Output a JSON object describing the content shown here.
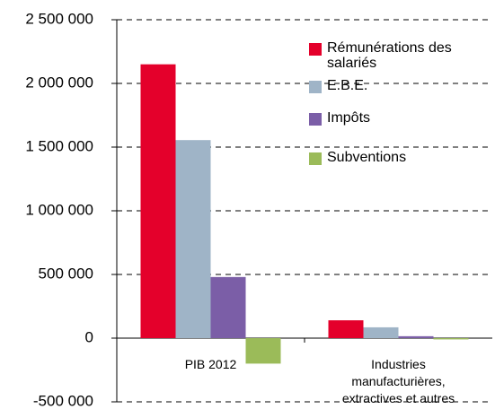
{
  "chart_data": {
    "type": "bar",
    "categories": [
      "PIB 2012",
      "Industries manufacturières, extractives et autres"
    ],
    "series": [
      {
        "name": "Rémunérations des salariés",
        "color": "#e4002b",
        "values": [
          2150000,
          140000
        ]
      },
      {
        "name": "E.B.E.",
        "color": "#9fb4c7",
        "values": [
          1555000,
          85000
        ]
      },
      {
        "name": "Impôts",
        "color": "#7b5ea7",
        "values": [
          480000,
          15000
        ]
      },
      {
        "name": "Subventions",
        "color": "#9bbb59",
        "values": [
          -200000,
          -10000
        ]
      }
    ],
    "ylim": [
      -500000,
      2500000
    ],
    "yticks": [
      {
        "value": -500000,
        "label": "-500 000"
      },
      0,
      {
        "value": 500000,
        "label": "500 000"
      },
      {
        "value": 1000000,
        "label": "1 000 000"
      },
      {
        "value": 1500000,
        "label": "1 500 000"
      },
      {
        "value": 2000000,
        "label": "2 000 000"
      },
      {
        "value": 2500000,
        "label": "2 500 000"
      }
    ],
    "grid": true,
    "legend": "upper right"
  }
}
